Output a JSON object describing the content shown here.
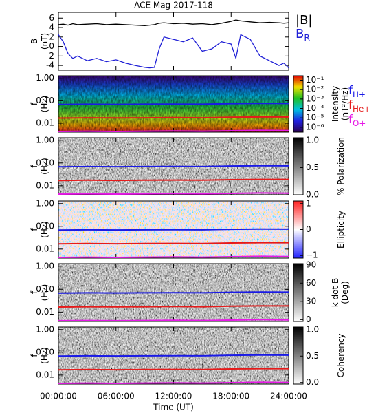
{
  "chart_data": [
    {
      "type": "line",
      "title": "ACE Mag 2017-118",
      "ylabel": [
        "B",
        "(nT)"
      ],
      "ylim": [
        -5,
        7.2
      ],
      "yticks": [
        -4,
        -2,
        0,
        2,
        4,
        6
      ],
      "xlim": [
        0,
        24
      ],
      "xticks": [
        0,
        6,
        12,
        18,
        24
      ],
      "x": [
        0,
        0.5,
        1,
        1.5,
        2,
        3,
        4,
        5,
        6,
        7,
        8,
        9,
        9.5,
        10,
        10.5,
        11,
        12,
        13,
        14,
        15,
        16,
        17,
        18,
        18.5,
        19,
        20,
        21,
        22,
        23,
        23.5,
        24
      ],
      "series": [
        {
          "name": "|B|",
          "color": "#000000",
          "values": [
            4.6,
            4.7,
            4.5,
            4.8,
            4.6,
            4.7,
            4.8,
            4.6,
            4.7,
            4.6,
            4.5,
            4.4,
            4.5,
            4.6,
            4.9,
            5.0,
            4.8,
            4.9,
            4.7,
            4.8,
            4.6,
            4.9,
            5.3,
            5.6,
            5.4,
            5.2,
            5.0,
            5.1,
            5.0,
            4.9,
            5.0
          ]
        },
        {
          "name": "B",
          "subscript": "R",
          "color": "#1f1fd6",
          "values": [
            2.5,
            1.0,
            -1.5,
            -2.5,
            -2.0,
            -3.0,
            -2.5,
            -3.2,
            -2.8,
            -3.5,
            -4.0,
            -4.4,
            -4.5,
            -4.4,
            -0.5,
            2.0,
            1.5,
            1.0,
            1.8,
            -1.0,
            -0.5,
            1.0,
            0.5,
            -2.5,
            2.5,
            1.5,
            -2.0,
            -3.0,
            -4.0,
            -3.5,
            -4.5
          ]
        }
      ]
    },
    {
      "type": "spectrogram",
      "colormap": "rainbow",
      "ylabel": [
        "f",
        "(Hz)"
      ],
      "log": true,
      "ylim": [
        0.004,
        1.3
      ],
      "yticks": [
        {
          "value": 0.01,
          "label": "0.01"
        },
        {
          "value": 0.1,
          "label": "0.10"
        },
        {
          "value": 1,
          "label": "1.00"
        }
      ],
      "xlim": [
        0,
        24
      ],
      "xticks": [
        0,
        6,
        12,
        18,
        24
      ],
      "colorbar": {
        "label": [
          "Intensity",
          "(nT²/Hz)"
        ],
        "log": true,
        "lim": [
          3e-07,
          0.3
        ],
        "ticks": [
          {
            "value": 0.1,
            "label": "10⁻¹"
          },
          {
            "value": 0.01,
            "label": "10⁻²"
          },
          {
            "value": 0.001,
            "label": "10⁻³"
          },
          {
            "value": 0.0001,
            "label": "10⁻⁴"
          },
          {
            "value": 1e-05,
            "label": "10⁻⁵"
          },
          {
            "value": 1e-06,
            "label": "10⁻⁶"
          }
        ]
      },
      "legend": true,
      "x": [
        0,
        3,
        6,
        9,
        12,
        15,
        18,
        21,
        24
      ],
      "series": [
        {
          "name": "f",
          "subscript": "H+",
          "color": "#1a1ae6",
          "values": [
            0.068,
            0.07,
            0.069,
            0.07,
            0.071,
            0.07,
            0.074,
            0.076,
            0.075
          ]
        },
        {
          "name": "f",
          "subscript": "He+",
          "color": "#e61a1a",
          "values": [
            0.017,
            0.0175,
            0.0172,
            0.0175,
            0.0178,
            0.0175,
            0.0185,
            0.019,
            0.019
          ]
        },
        {
          "name": "f",
          "subscript": "O+",
          "color": "#e61ae6",
          "values": [
            0.0043,
            0.0044,
            0.0043,
            0.0044,
            0.0045,
            0.0044,
            0.0046,
            0.0048,
            0.0047
          ]
        }
      ]
    },
    {
      "type": "spectrogram",
      "colormap": "gray",
      "ylabel": [
        "f",
        "(Hz)"
      ],
      "log": true,
      "ylim": [
        0.004,
        1.3
      ],
      "yticks": [
        {
          "value": 0.01,
          "label": "0.01"
        },
        {
          "value": 0.1,
          "label": "0.10"
        },
        {
          "value": 1,
          "label": "1.00"
        }
      ],
      "xlim": [
        0,
        24
      ],
      "xticks": [
        0,
        6,
        12,
        18,
        24
      ],
      "colorbar": {
        "label": [
          "% Polarization"
        ],
        "lim": [
          0,
          1.05
        ],
        "ticks": [
          {
            "value": 0,
            "label": "0.0"
          },
          {
            "value": 0.5,
            "label": "0.5"
          },
          {
            "value": 1,
            "label": "1.0"
          }
        ]
      },
      "x": [
        0,
        3,
        6,
        9,
        12,
        15,
        18,
        21,
        24
      ],
      "series": [
        {
          "color": "#1a1ae6",
          "values": [
            0.068,
            0.07,
            0.069,
            0.07,
            0.071,
            0.07,
            0.074,
            0.076,
            0.075
          ]
        },
        {
          "color": "#e61a1a",
          "values": [
            0.017,
            0.0175,
            0.0172,
            0.0175,
            0.0178,
            0.0175,
            0.0185,
            0.019,
            0.019
          ]
        },
        {
          "color": "#e61ae6",
          "values": [
            0.0043,
            0.0044,
            0.0043,
            0.0044,
            0.0045,
            0.0044,
            0.0046,
            0.0048,
            0.0047
          ]
        }
      ]
    },
    {
      "type": "spectrogram",
      "colormap": "bwr",
      "ylabel": [
        "f",
        "(Hz)"
      ],
      "log": true,
      "ylim": [
        0.004,
        1.3
      ],
      "yticks": [
        {
          "value": 0.01,
          "label": "0.01"
        },
        {
          "value": 0.1,
          "label": "0.10"
        },
        {
          "value": 1,
          "label": "1.00"
        }
      ],
      "xlim": [
        0,
        24
      ],
      "xticks": [
        0,
        6,
        12,
        18,
        24
      ],
      "colorbar": {
        "label": [
          "Ellipticity"
        ],
        "lim": [
          -1.1,
          1.1
        ],
        "ticks": [
          {
            "value": -1,
            "label": "−1"
          },
          0,
          1
        ]
      },
      "x": [
        0,
        3,
        6,
        9,
        12,
        15,
        18,
        21,
        24
      ],
      "series": [
        {
          "color": "#1a1ae6",
          "values": [
            0.068,
            0.07,
            0.069,
            0.07,
            0.071,
            0.07,
            0.074,
            0.076,
            0.075
          ]
        },
        {
          "color": "#e61a1a",
          "values": [
            0.017,
            0.0175,
            0.0172,
            0.0175,
            0.0178,
            0.0175,
            0.0185,
            0.019,
            0.019
          ]
        },
        {
          "color": "#e61ae6",
          "values": [
            0.0043,
            0.0044,
            0.0043,
            0.0044,
            0.0045,
            0.0044,
            0.0046,
            0.0048,
            0.0047
          ]
        }
      ]
    },
    {
      "type": "spectrogram",
      "colormap": "gray",
      "ylabel": [
        "f",
        "(Hz)"
      ],
      "log": true,
      "ylim": [
        0.004,
        1.3
      ],
      "yticks": [
        {
          "value": 0.01,
          "label": "0.01"
        },
        {
          "value": 0.1,
          "label": "0.10"
        },
        {
          "value": 1,
          "label": "1.00"
        }
      ],
      "xlim": [
        0,
        24
      ],
      "xticks": [
        0,
        6,
        12,
        18,
        24
      ],
      "colorbar": {
        "label": [
          "k dot B",
          "(Deg)"
        ],
        "lim": [
          -3,
          92
        ],
        "ticks": [
          0,
          30,
          60,
          90
        ]
      },
      "x": [
        0,
        3,
        6,
        9,
        12,
        15,
        18,
        21,
        24
      ],
      "series": [
        {
          "color": "#1a1ae6",
          "values": [
            0.068,
            0.07,
            0.069,
            0.07,
            0.071,
            0.07,
            0.074,
            0.076,
            0.075
          ]
        },
        {
          "color": "#e61a1a",
          "values": [
            0.017,
            0.0175,
            0.0172,
            0.0175,
            0.0178,
            0.0175,
            0.0185,
            0.019,
            0.019
          ]
        },
        {
          "color": "#e61ae6",
          "values": [
            0.0043,
            0.0044,
            0.0043,
            0.0044,
            0.0045,
            0.0044,
            0.0046,
            0.0048,
            0.0047
          ]
        }
      ]
    },
    {
      "type": "spectrogram",
      "colormap": "gray",
      "ylabel": [
        "f",
        "(Hz)"
      ],
      "log": true,
      "ylim": [
        0.004,
        1.3
      ],
      "yticks": [
        {
          "value": 0.01,
          "label": "0.01"
        },
        {
          "value": 0.1,
          "label": "0.10"
        },
        {
          "value": 1,
          "label": "1.00"
        }
      ],
      "xlim": [
        0,
        24
      ],
      "xticks": [
        {
          "value": 0,
          "label": "00:00:00"
        },
        {
          "value": 6,
          "label": "06:00:00"
        },
        {
          "value": 12,
          "label": "12:00:00"
        },
        {
          "value": 18,
          "label": "18:00:00"
        },
        {
          "value": 24,
          "label": "24:00:00"
        }
      ],
      "xlabel": "Time (UT)",
      "colorbar": {
        "label": [
          "Coherency"
        ],
        "lim": [
          -0.03,
          1.05
        ],
        "ticks": [
          {
            "value": 0,
            "label": "0.0"
          },
          {
            "value": 0.5,
            "label": "0.5"
          },
          {
            "value": 1,
            "label": "1.0"
          }
        ]
      },
      "x": [
        0,
        3,
        6,
        9,
        12,
        15,
        18,
        21,
        24
      ],
      "series": [
        {
          "color": "#1a1ae6",
          "values": [
            0.068,
            0.07,
            0.069,
            0.07,
            0.071,
            0.07,
            0.074,
            0.076,
            0.075
          ]
        },
        {
          "color": "#e61a1a",
          "values": [
            0.017,
            0.0175,
            0.0172,
            0.0175,
            0.0178,
            0.0175,
            0.0185,
            0.019,
            0.019
          ]
        },
        {
          "color": "#e61ae6",
          "values": [
            0.0043,
            0.0044,
            0.0043,
            0.0044,
            0.0045,
            0.0044,
            0.0046,
            0.0048,
            0.0047
          ]
        }
      ]
    }
  ]
}
